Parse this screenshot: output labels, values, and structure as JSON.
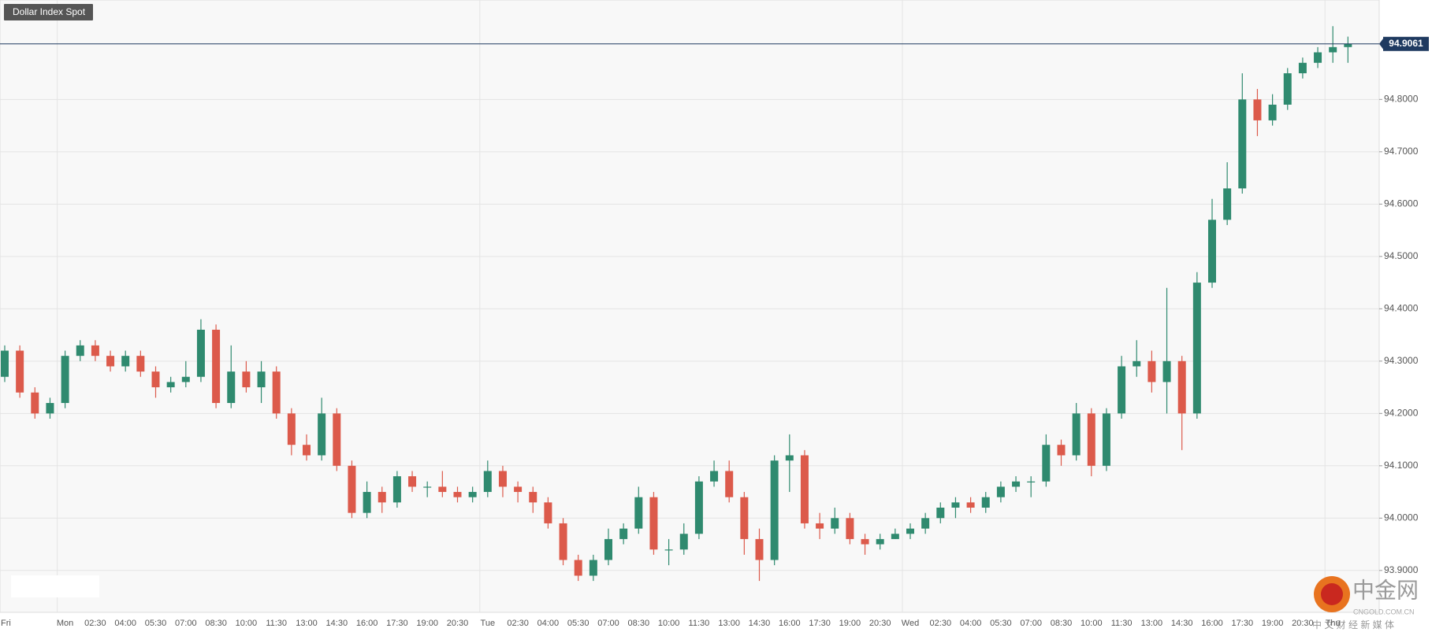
{
  "chart_data": {
    "type": "candlestick",
    "title": "Dollar Index Spot",
    "categories": [
      "Fri",
      null,
      null,
      null,
      "Mon",
      null,
      "02:30",
      null,
      "04:00",
      null,
      "05:30",
      null,
      "07:00",
      null,
      "08:30",
      null,
      "10:00",
      null,
      "11:30",
      null,
      "13:00",
      null,
      "14:30",
      null,
      "16:00",
      null,
      "17:30",
      null,
      "19:00",
      null,
      "20:30",
      null,
      "Tue",
      null,
      "02:30",
      null,
      "04:00",
      null,
      "05:30",
      null,
      "07:00",
      null,
      "08:30",
      null,
      "10:00",
      null,
      "11:30",
      null,
      "13:00",
      null,
      "14:30",
      null,
      "16:00",
      null,
      "17:30",
      null,
      "19:00",
      null,
      "20:30",
      null,
      "Wed",
      null,
      "02:30",
      null,
      "04:00",
      null,
      "05:30",
      null,
      "07:00",
      null,
      "08:30",
      null,
      "10:00",
      null,
      "11:30",
      null,
      "13:00",
      null,
      "14:30",
      null,
      "16:00",
      null,
      "17:30",
      null,
      "19:00",
      null,
      "20:30",
      null,
      "Thu",
      null
    ],
    "open": [
      94.27,
      94.32,
      94.24,
      94.2,
      94.22,
      94.31,
      94.33,
      94.31,
      94.29,
      94.31,
      94.28,
      94.25,
      94.26,
      94.27,
      94.36,
      94.22,
      94.28,
      94.25,
      94.28,
      94.2,
      94.14,
      94.12,
      94.2,
      94.1,
      94.01,
      94.05,
      94.03,
      94.08,
      94.06,
      94.06,
      94.05,
      94.04,
      94.05,
      94.09,
      94.06,
      94.05,
      94.03,
      93.99,
      93.92,
      93.89,
      93.92,
      93.96,
      93.98,
      94.04,
      93.94,
      93.94,
      93.97,
      94.07,
      94.09,
      94.04,
      93.96,
      93.92,
      94.11,
      94.12,
      93.99,
      93.98,
      94.0,
      93.96,
      93.95,
      93.96,
      93.97,
      93.98,
      94.0,
      94.02,
      94.03,
      94.02,
      94.04,
      94.06,
      94.07,
      94.07,
      94.14,
      94.12,
      94.2,
      94.1,
      94.2,
      94.29,
      94.3,
      94.26,
      94.3,
      94.2,
      94.45,
      94.57,
      94.63,
      94.8,
      94.76,
      94.79,
      94.85,
      94.87,
      94.89,
      94.9
    ],
    "high": [
      94.33,
      94.33,
      94.25,
      94.23,
      94.32,
      94.34,
      94.34,
      94.32,
      94.32,
      94.32,
      94.29,
      94.27,
      94.3,
      94.38,
      94.37,
      94.33,
      94.3,
      94.3,
      94.29,
      94.21,
      94.16,
      94.23,
      94.21,
      94.11,
      94.07,
      94.06,
      94.09,
      94.09,
      94.07,
      94.09,
      94.06,
      94.06,
      94.11,
      94.1,
      94.07,
      94.06,
      94.04,
      94.0,
      93.93,
      93.93,
      93.98,
      93.99,
      94.06,
      94.05,
      93.96,
      93.99,
      94.08,
      94.11,
      94.11,
      94.05,
      93.98,
      94.12,
      94.16,
      94.13,
      94.01,
      94.02,
      94.01,
      93.97,
      93.97,
      93.98,
      93.99,
      94.01,
      94.03,
      94.04,
      94.04,
      94.05,
      94.07,
      94.08,
      94.08,
      94.16,
      94.15,
      94.22,
      94.21,
      94.21,
      94.31,
      94.34,
      94.32,
      94.44,
      94.31,
      94.47,
      94.61,
      94.68,
      94.85,
      94.82,
      94.81,
      94.86,
      94.88,
      94.9,
      94.94,
      94.92
    ],
    "low": [
      94.26,
      94.23,
      94.19,
      94.19,
      94.21,
      94.3,
      94.3,
      94.28,
      94.28,
      94.27,
      94.23,
      94.24,
      94.25,
      94.26,
      94.21,
      94.21,
      94.24,
      94.22,
      94.19,
      94.12,
      94.11,
      94.11,
      94.09,
      94.0,
      94.0,
      94.01,
      94.02,
      94.05,
      94.04,
      94.04,
      94.03,
      94.03,
      94.04,
      94.04,
      94.03,
      94.01,
      93.98,
      93.91,
      93.88,
      93.88,
      93.91,
      93.95,
      93.97,
      93.93,
      93.91,
      93.93,
      93.96,
      94.06,
      94.03,
      93.93,
      93.88,
      93.91,
      94.05,
      93.98,
      93.96,
      93.97,
      93.95,
      93.93,
      93.94,
      93.96,
      93.96,
      93.97,
      93.99,
      94.0,
      94.01,
      94.01,
      94.03,
      94.05,
      94.04,
      94.06,
      94.1,
      94.11,
      94.08,
      94.09,
      94.19,
      94.27,
      94.24,
      94.2,
      94.13,
      94.19,
      94.44,
      94.56,
      94.62,
      94.73,
      94.75,
      94.78,
      94.84,
      94.86,
      94.87,
      94.87
    ],
    "close": [
      94.32,
      94.24,
      94.2,
      94.22,
      94.31,
      94.33,
      94.31,
      94.29,
      94.31,
      94.28,
      94.25,
      94.26,
      94.27,
      94.36,
      94.22,
      94.28,
      94.25,
      94.28,
      94.2,
      94.14,
      94.12,
      94.2,
      94.1,
      94.01,
      94.05,
      94.03,
      94.08,
      94.06,
      94.06,
      94.05,
      94.04,
      94.05,
      94.09,
      94.06,
      94.05,
      94.03,
      93.99,
      93.92,
      93.89,
      93.92,
      93.96,
      93.98,
      94.04,
      93.94,
      93.94,
      93.97,
      94.07,
      94.09,
      94.04,
      93.96,
      93.92,
      94.11,
      94.12,
      93.99,
      93.98,
      94.0,
      93.96,
      93.95,
      93.96,
      93.97,
      93.98,
      94.0,
      94.02,
      94.03,
      94.02,
      94.04,
      94.06,
      94.07,
      94.07,
      94.14,
      94.12,
      94.2,
      94.1,
      94.2,
      94.29,
      94.3,
      94.26,
      94.3,
      94.2,
      94.45,
      94.57,
      94.63,
      94.8,
      94.76,
      94.79,
      94.85,
      94.87,
      94.89,
      94.9,
      94.9061
    ],
    "up_color": "#2f8a6f",
    "down_color": "#dc5a4b",
    "ylim": [
      93.82,
      94.99
    ],
    "yticks": [
      {
        "value": 93.9,
        "label": "93.9000"
      },
      {
        "value": 94.0,
        "label": "94.0000"
      },
      {
        "value": 94.1,
        "label": "94.1000"
      },
      {
        "value": 94.2,
        "label": "94.2000"
      },
      {
        "value": 94.3,
        "label": "94.3000"
      },
      {
        "value": 94.4,
        "label": "94.4000"
      },
      {
        "value": 94.5,
        "label": "94.5000"
      },
      {
        "value": 94.6,
        "label": "94.6000"
      },
      {
        "value": 94.7,
        "label": "94.7000"
      },
      {
        "value": 94.8,
        "label": "94.8000"
      }
    ],
    "grid": true,
    "last_price": 94.9061
  },
  "watermark": {
    "name": "中金网",
    "domain": "CNGOLD.COM.CN",
    "tagline": "中 文 财 经 新 媒 体"
  }
}
